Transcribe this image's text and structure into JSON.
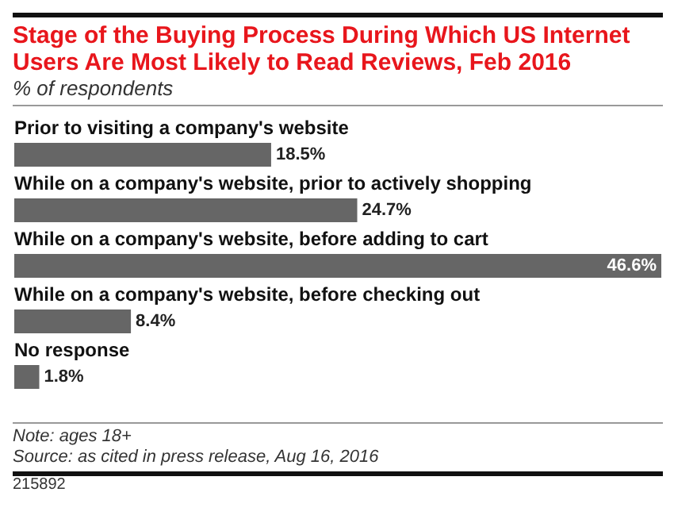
{
  "chart_data": {
    "type": "bar",
    "orientation": "horizontal",
    "title": "Stage of the Buying Process During Which US Internet Users Are Most Likely to Read Reviews, Feb 2016",
    "subtitle": "% of respondents",
    "categories": [
      "Prior to visiting a company's website",
      "While on a company's website, prior to actively shopping",
      "While on a company's website, before adding to cart",
      "While on a company's website, before checking out",
      "No response"
    ],
    "values": [
      18.5,
      24.7,
      46.6,
      8.4,
      1.8
    ],
    "value_labels": [
      "18.5%",
      "24.7%",
      "46.6%",
      "8.4%",
      "1.8%"
    ],
    "color": "#666666",
    "annotations": [
      "Note: ages 18+",
      "Source: as cited in press release, Aug 16, 2016",
      "215892"
    ]
  }
}
